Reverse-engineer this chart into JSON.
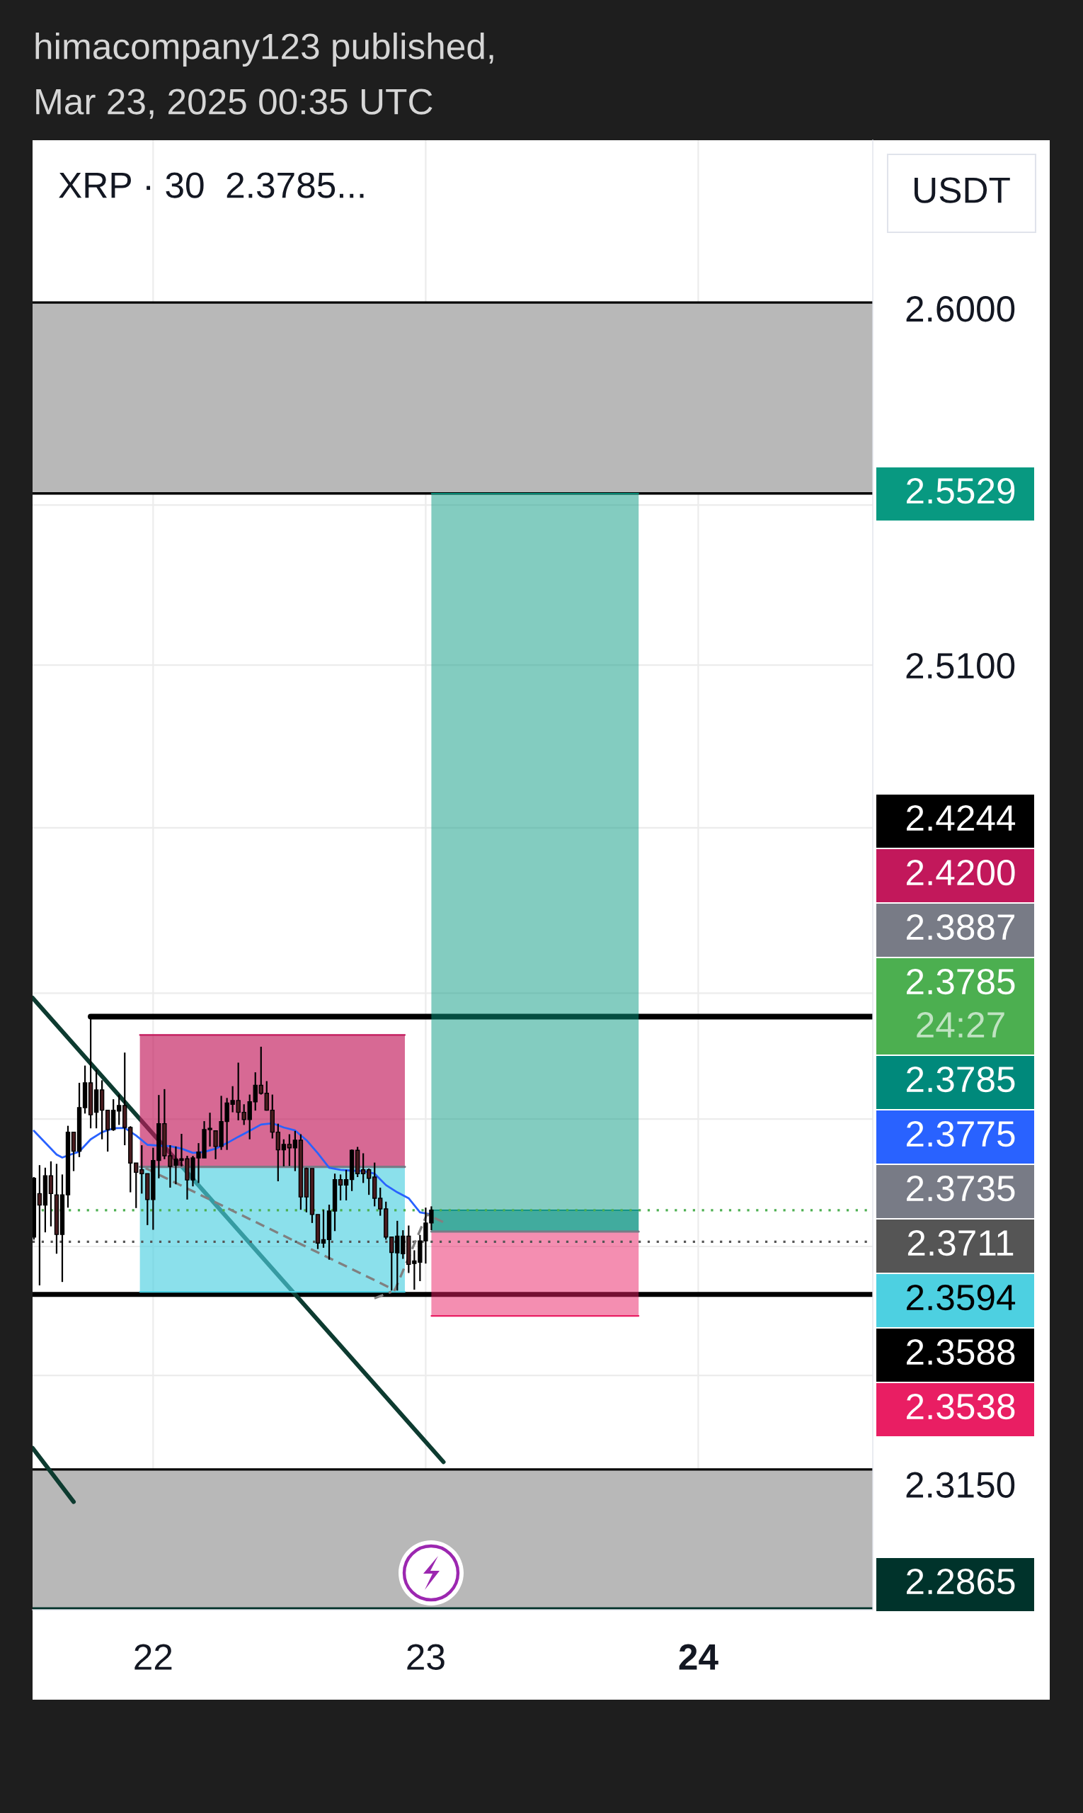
{
  "chart_data": {
    "type": "candlestick",
    "title": "XRP · 30  2.3785...",
    "subtitle": "himacompany123 published,\nMar 23, 2025 00:35 UTC",
    "ylabel": "USDT",
    "annotations": [
      "2.5529",
      "2.4244",
      "2.4200",
      "2.3887",
      "2.3785\n24:27",
      "2.3785",
      "2.3775",
      "2.3735",
      "2.3711",
      "2.3594",
      "2.3588",
      "2.3538",
      "2.2865"
    ],
    "x": [
      "2025-03-21T13:30",
      "2025-03-21T14:00",
      "2025-03-21T14:30",
      "2025-03-21T15:00",
      "2025-03-21T15:30",
      "2025-03-21T16:00",
      "2025-03-21T16:30",
      "2025-03-21T17:00",
      "2025-03-21T17:30",
      "2025-03-21T18:00",
      "2025-03-21T18:30",
      "2025-03-21T19:00",
      "2025-03-21T19:30",
      "2025-03-21T20:00",
      "2025-03-21T20:30",
      "2025-03-21T21:00",
      "2025-03-21T21:30",
      "2025-03-21T22:00",
      "2025-03-21T22:30",
      "2025-03-21T23:00",
      "2025-03-21T23:30",
      "2025-03-22T00:00",
      "2025-03-22T00:30",
      "2025-03-22T01:00",
      "2025-03-22T01:30",
      "2025-03-22T02:00",
      "2025-03-22T02:30",
      "2025-03-22T03:00",
      "2025-03-22T03:30",
      "2025-03-22T04:00",
      "2025-03-22T04:30",
      "2025-03-22T05:00",
      "2025-03-22T05:30",
      "2025-03-22T06:00",
      "2025-03-22T06:30",
      "2025-03-22T07:00",
      "2025-03-22T07:30",
      "2025-03-22T08:00",
      "2025-03-22T08:30",
      "2025-03-22T09:00",
      "2025-03-22T09:30",
      "2025-03-22T10:00",
      "2025-03-22T10:30",
      "2025-03-22T11:00",
      "2025-03-22T11:30",
      "2025-03-22T12:00",
      "2025-03-22T12:30",
      "2025-03-22T13:00",
      "2025-03-22T13:30",
      "2025-03-22T14:00",
      "2025-03-22T14:30",
      "2025-03-22T15:00",
      "2025-03-22T15:30",
      "2025-03-22T16:00",
      "2025-03-22T16:30",
      "2025-03-22T17:00",
      "2025-03-22T17:30",
      "2025-03-22T18:00",
      "2025-03-22T18:30",
      "2025-03-22T19:00",
      "2025-03-22T19:30",
      "2025-03-22T20:00",
      "2025-03-22T20:30",
      "2025-03-22T21:00",
      "2025-03-22T21:30",
      "2025-03-22T22:00",
      "2025-03-22T22:30",
      "2025-03-22T23:00",
      "2025-03-22T23:30",
      "2025-03-23T00:00",
      "2025-03-23T00:30"
    ],
    "ohlc": [
      [
        2.3722,
        2.3863,
        2.3716,
        2.386
      ],
      [
        2.3824,
        2.3891,
        2.3609,
        2.3797
      ],
      [
        2.3797,
        2.3885,
        2.3733,
        2.3866
      ],
      [
        2.3866,
        2.39,
        2.3747,
        2.3824
      ],
      [
        2.3821,
        2.3894,
        2.3683,
        2.3728
      ],
      [
        2.3728,
        2.3869,
        2.3617,
        2.3821
      ],
      [
        2.3821,
        2.3984,
        2.3791,
        2.3969
      ],
      [
        2.3969,
        2.3969,
        2.3877,
        2.3924
      ],
      [
        2.3924,
        2.4086,
        2.391,
        2.4027
      ],
      [
        2.4027,
        2.4127,
        2.4013,
        2.4086
      ],
      [
        2.4086,
        2.4244,
        2.3978,
        2.401
      ],
      [
        2.4016,
        2.4117,
        2.3978,
        2.4069
      ],
      [
        2.4069,
        2.4092,
        2.3952,
        2.4021
      ],
      [
        2.4021,
        2.4021,
        2.3923,
        2.3975
      ],
      [
        2.3975,
        2.4047,
        2.3972,
        2.4021
      ],
      [
        2.4019,
        2.4058,
        2.3986,
        2.4032
      ],
      [
        2.4032,
        2.4158,
        2.3938,
        2.398
      ],
      [
        2.398,
        2.3983,
        2.3827,
        2.3896
      ],
      [
        2.3896,
        2.3896,
        2.379,
        2.3874
      ],
      [
        2.388,
        2.3938,
        2.3824,
        2.3871
      ],
      [
        2.3871,
        2.3871,
        2.375,
        2.381
      ],
      [
        2.381,
        2.3932,
        2.3739,
        2.3902
      ],
      [
        2.3902,
        2.4057,
        2.386,
        2.3989
      ],
      [
        2.3989,
        2.4071,
        2.3905,
        2.3913
      ],
      [
        2.3913,
        2.3938,
        2.3838,
        2.3888
      ],
      [
        2.3891,
        2.3935,
        2.3846,
        2.3905
      ],
      [
        2.3902,
        2.3965,
        2.3888,
        2.3906
      ],
      [
        2.3906,
        2.3913,
        2.381,
        2.3856
      ],
      [
        2.3856,
        2.3913,
        2.3841,
        2.3908
      ],
      [
        2.3908,
        2.3943,
        2.3849,
        2.3922
      ],
      [
        2.3908,
        2.3995,
        2.3908,
        2.3975
      ],
      [
        2.3978,
        2.4015,
        2.3935,
        2.3975
      ],
      [
        2.3972,
        2.3972,
        2.3905,
        2.3935
      ],
      [
        2.3935,
        2.4055,
        2.3927,
        2.3994
      ],
      [
        2.3994,
        2.405,
        2.3927,
        2.4038
      ],
      [
        2.4035,
        2.4078,
        2.4016,
        2.4044
      ],
      [
        2.4044,
        2.4134,
        2.3997,
        2.4016
      ],
      [
        2.4016,
        2.4035,
        2.3986,
        2.3999
      ],
      [
        2.3999,
        2.4058,
        2.3952,
        2.4041
      ],
      [
        2.4041,
        2.4111,
        2.402,
        2.408
      ],
      [
        2.408,
        2.4172,
        2.4058,
        2.4061
      ],
      [
        2.4061,
        2.409,
        2.402,
        2.4021
      ],
      [
        2.4021,
        2.4058,
        2.3954,
        2.3969
      ],
      [
        2.3969,
        2.3989,
        2.3853,
        2.3927
      ],
      [
        2.3927,
        2.3952,
        2.3888,
        2.394
      ],
      [
        2.394,
        2.3964,
        2.3889,
        2.3932
      ],
      [
        2.3932,
        2.3972,
        2.3877,
        2.395
      ],
      [
        2.395,
        2.3964,
        2.3786,
        2.3816
      ],
      [
        2.3883,
        2.3885,
        2.378,
        2.3816
      ],
      [
        2.3883,
        2.3883,
        2.3755,
        2.3775
      ],
      [
        2.3775,
        2.3775,
        2.3694,
        2.3708
      ],
      [
        2.3708,
        2.3786,
        2.3697,
        2.3716
      ],
      [
        2.3716,
        2.3798,
        2.3669,
        2.3783
      ],
      [
        2.3783,
        2.3871,
        2.3736,
        2.3857
      ],
      [
        2.3857,
        2.3869,
        2.3808,
        2.3844
      ],
      [
        2.3844,
        2.388,
        2.3808,
        2.3857
      ],
      [
        2.3857,
        2.3928,
        2.383,
        2.3926
      ],
      [
        2.3926,
        2.3934,
        2.3863,
        2.3871
      ],
      [
        2.388,
        2.3919,
        2.3849,
        2.3871
      ],
      [
        2.388,
        2.3883,
        2.3821,
        2.386
      ],
      [
        2.3863,
        2.3897,
        2.3794,
        2.3813
      ],
      [
        2.3813,
        2.3838,
        2.3772,
        2.3788
      ],
      [
        2.3788,
        2.3805,
        2.3716,
        2.3722
      ],
      [
        2.3722,
        2.3722,
        2.3597,
        2.3686
      ],
      [
        2.3685,
        2.376,
        2.3597,
        2.3724
      ],
      [
        2.3683,
        2.3738,
        2.3671,
        2.3724
      ],
      [
        2.3724,
        2.3749,
        2.3638,
        2.3658
      ],
      [
        2.366,
        2.3691,
        2.3599,
        2.3666
      ],
      [
        2.3663,
        2.3727,
        2.3619,
        2.3713
      ],
      [
        2.3713,
        2.3791,
        2.366,
        2.3755
      ],
      [
        2.3755,
        2.3794,
        2.3738,
        2.3785
      ]
    ],
    "colors": [
      "#000000",
      "#4a1c1f",
      "#000000",
      "#4a1c1f",
      "#4a1c1f",
      "#000000",
      "#000000",
      "#4a1c1f",
      "#000000",
      "#000000",
      "#4a1c1f",
      "#000000",
      "#4a1c1f",
      "#4a1c1f",
      "#000000",
      "#000000",
      "#4a1c1f",
      "#4a1c1f",
      "#4a1c1f",
      "#4a1c1f",
      "#4a1c1f",
      "#000000",
      "#000000",
      "#4a1c1f",
      "#4a1c1f",
      "#000000",
      "#000000",
      "#4a1c1f",
      "#000000",
      "#000000",
      "#000000",
      "#4a1c1f",
      "#4a1c1f",
      "#000000",
      "#000000",
      "#000000",
      "#4a1c1f",
      "#4a1c1f",
      "#000000",
      "#000000",
      "#4a1c1f",
      "#4a1c1f",
      "#4a1c1f",
      "#4a1c1f",
      "#000000",
      "#4a1c1f",
      "#000000",
      "#4a1c1f",
      "#4a1c1f",
      "#4a1c1f",
      "#4a1c1f",
      "#000000",
      "#000000",
      "#000000",
      "#4a1c1f",
      "#000000",
      "#000000",
      "#4a1c1f",
      "#4a1c1f",
      "#4a1c1f",
      "#4a1c1f",
      "#4a1c1f",
      "#4a1c1f",
      "#4a1c1f",
      "#000000",
      "#000000",
      "#4a1c1f",
      "#000000",
      "#000000",
      "#000000",
      "#000000"
    ],
    "series": [
      {
        "type": "line",
        "color": "#2962ff",
        "x": [
          "2025-03-21T13:30",
          "2025-03-21T14:30",
          "2025-03-21T15:30",
          "2025-03-21T16:00",
          "2025-03-21T16:30",
          "2025-03-21T17:30",
          "2025-03-21T18:30",
          "2025-03-21T19:30",
          "2025-03-21T20:30",
          "2025-03-21T21:30",
          "2025-03-21T22:30",
          "2025-03-21T23:30",
          "2025-03-22T00:30",
          "2025-03-22T01:30",
          "2025-03-22T02:30",
          "2025-03-22T03:30",
          "2025-03-22T04:30",
          "2025-03-22T05:30",
          "2025-03-22T06:30",
          "2025-03-22T07:30",
          "2025-03-22T08:30",
          "2025-03-22T09:30",
          "2025-03-22T10:30",
          "2025-03-22T11:30",
          "2025-03-22T12:30",
          "2025-03-22T13:30",
          "2025-03-22T14:30",
          "2025-03-22T15:30",
          "2025-03-22T16:30",
          "2025-03-22T17:30",
          "2025-03-22T18:30",
          "2025-03-22T19:30",
          "2025-03-22T20:30",
          "2025-03-22T21:30",
          "2025-03-22T22:30",
          "2025-03-22T23:30",
          "2025-03-23T00:30"
        ],
        "values": [
          2.3972,
          2.3944,
          2.3916,
          2.3909,
          2.3914,
          2.3923,
          2.3952,
          2.3969,
          2.3978,
          2.3979,
          2.3961,
          2.3939,
          2.3937,
          2.3936,
          2.393,
          2.392,
          2.3922,
          2.393,
          2.3943,
          2.3958,
          2.3972,
          2.3987,
          2.399,
          2.398,
          2.3973,
          2.395,
          2.3919,
          2.3885,
          2.388,
          2.3878,
          2.3877,
          2.3871,
          2.3844,
          2.3827,
          2.3813,
          2.378,
          2.3775
        ]
      },
      {
        "type": "line",
        "color": "#0d3b30",
        "x": [
          "2025-03-21T13:23",
          "2025-03-23T01:34"
        ],
        "values": [
          2.4289,
          2.3201
        ]
      },
      {
        "type": "line",
        "color": "#0d3b30",
        "x": [
          "2025-03-21T13:23",
          "2025-03-21T17:00"
        ],
        "values": [
          2.3233,
          2.311
        ]
      },
      {
        "type": "line",
        "color": "#000000",
        "x": [
          "2025-03-21T18:30",
          "2025-03-24T15:22"
        ],
        "values": [
          2.4244,
          2.4244
        ]
      },
      {
        "type": "line",
        "color": "#808080",
        "line_style": "dashed",
        "x": [
          "2025-03-21T23:20",
          "2025-03-22T21:17",
          "2025-03-23T00:06",
          "2025-03-23T01:58"
        ],
        "values": [
          2.3884,
          2.3598,
          2.3775,
          2.3752
        ]
      },
      {
        "type": "line",
        "color": "#808080",
        "line_style": "dashed",
        "x": [
          "2025-03-22T19:29",
          "2025-03-22T20:58"
        ],
        "values": [
          2.3579,
          2.3594
        ]
      },
      {
        "type": "line",
        "color": "#c2185b",
        "x": [
          "2025-03-21T22:50",
          "2025-03-22T22:10"
        ],
        "values": [
          2.42,
          2.42
        ],
        "lower": [
          2.3887,
          2.3887
        ],
        "upper": [
          2.42,
          2.42
        ]
      },
      {
        "type": "line",
        "color": "#787b86",
        "x": [
          "2025-03-21T22:50",
          "2025-03-22T22:10"
        ],
        "values": [
          2.3887,
          2.3887
        ]
      },
      {
        "type": "line",
        "color": "#4dd0e1",
        "x": [
          "2025-03-21T22:50",
          "2025-03-22T22:10"
        ],
        "values": [
          2.3594,
          2.3594
        ],
        "lower": [
          2.3594,
          2.3594
        ],
        "upper": [
          2.3887,
          2.3887
        ]
      },
      {
        "type": "line",
        "color": "#089981",
        "x": [
          "2025-03-23T00:30",
          "2025-03-23T18:45"
        ],
        "values": [
          2.5529,
          2.5529
        ],
        "lower": [
          2.3735,
          2.3735
        ],
        "upper": [
          2.5529,
          2.5529
        ]
      },
      {
        "type": "line",
        "color": "#00897b",
        "x": [
          "2025-03-23T00:30",
          "2025-03-23T18:45"
        ],
        "values": [
          2.3785,
          2.3785
        ],
        "lower": [
          2.3735,
          2.3735
        ],
        "upper": [
          2.3785,
          2.3785
        ]
      },
      {
        "type": "line",
        "color": "#787b86",
        "x": [
          "2025-03-23T00:30",
          "2025-03-23T18:45"
        ],
        "values": [
          2.3735,
          2.3735
        ]
      },
      {
        "type": "line",
        "color": "#e91e63",
        "x": [
          "2025-03-23T00:30",
          "2025-03-23T18:45"
        ],
        "values": [
          2.3538,
          2.3538
        ],
        "lower": [
          2.3538,
          2.3538
        ],
        "upper": [
          2.3735,
          2.3735
        ]
      }
    ],
    "bands": [
      {
        "axis": "y",
        "from": 2.5529,
        "to": 2.6015,
        "color": "#b8b8b8"
      },
      {
        "axis": "y",
        "from": 2.2865,
        "to": 2.3184,
        "color": "#b8b8b8"
      }
    ],
    "ref_lines": [
      {
        "axis": "y",
        "value": 2.3785,
        "color": "#4caf50",
        "line_style": "dotted"
      },
      {
        "axis": "y",
        "value": 2.3711,
        "color": "#555555",
        "line_style": "dotted"
      },
      {
        "axis": "y",
        "value": 2.3588,
        "color": "#000000",
        "line_style": "solid"
      },
      {
        "axis": "y",
        "value": 2.2865,
        "color": "#00332b",
        "line_style": "solid"
      }
    ],
    "xlim": [
      "2025-03-21T13:23",
      "2025-03-24T15:22"
    ],
    "xticks": [
      {
        "value": "2025-03-22",
        "label": "22"
      },
      {
        "value": "2025-03-23",
        "label": "23"
      },
      {
        "value": "2025-03-24",
        "label": "24"
      }
    ],
    "ylim": [
      2.2865,
      2.6435
    ],
    "yticks": [
      {
        "value": 2.6,
        "label": "2.6000"
      },
      {
        "value": 2.55,
        "label": null
      },
      {
        "value": 2.51,
        "label": "2.5100"
      },
      {
        "value": 2.47,
        "label": null
      },
      {
        "value": 2.43,
        "label": null
      },
      {
        "value": 2.4,
        "label": null
      },
      {
        "value": 2.37,
        "label": null
      },
      {
        "value": 2.34,
        "label": null
      },
      {
        "value": 2.315,
        "label": "2.3150"
      }
    ],
    "log": "y",
    "grid": true
  }
}
